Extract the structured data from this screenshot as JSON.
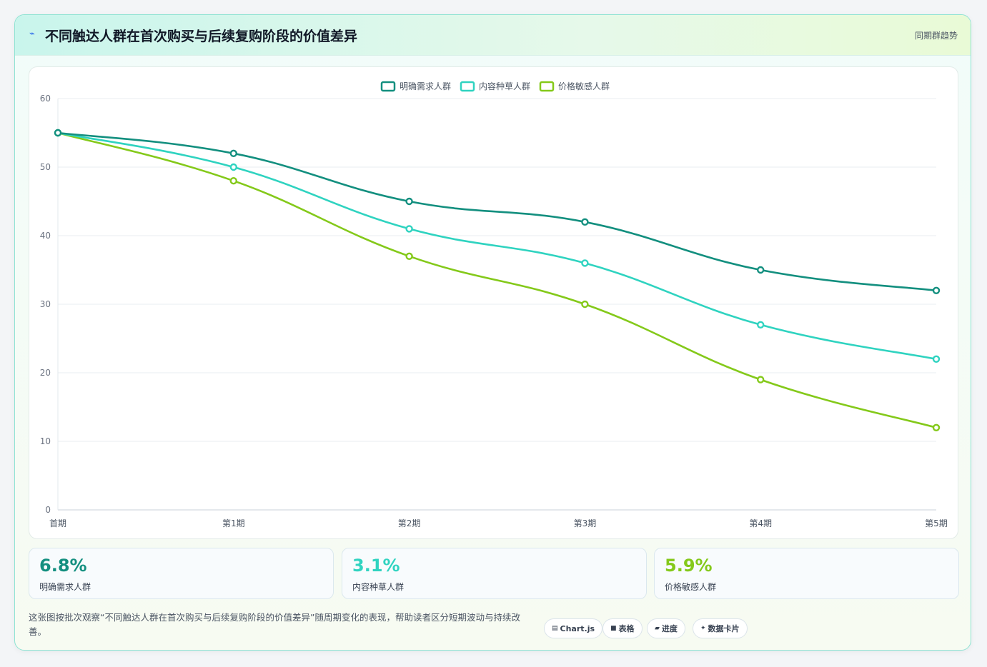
{
  "header": {
    "title": "不同触达人群在首次购买与后续复购阶段的价值差异",
    "tag": "同期群趋势"
  },
  "chart_data": {
    "type": "line",
    "categories": [
      "首期",
      "第1期",
      "第2期",
      "第3期",
      "第4期",
      "第5期"
    ],
    "ylim": [
      0,
      60
    ],
    "yticks": [
      0,
      10,
      20,
      30,
      40,
      50,
      60
    ],
    "grid": true,
    "legend_position": "top-center",
    "series": [
      {
        "name": "明确需求人群",
        "color": "#138f7f",
        "values": [
          55,
          52,
          45,
          42,
          35,
          32
        ]
      },
      {
        "name": "内容种草人群",
        "color": "#2fd3c0",
        "values": [
          55,
          50,
          41,
          36,
          27,
          22
        ]
      },
      {
        "name": "价格敏感人群",
        "color": "#84c91a",
        "values": [
          55,
          48,
          37,
          30,
          19,
          12
        ]
      }
    ]
  },
  "stats": [
    {
      "value": "6.8%",
      "label": "明确需求人群",
      "color": "#138f7f"
    },
    {
      "value": "3.1%",
      "label": "内容种草人群",
      "color": "#2fd3c0"
    },
    {
      "value": "5.9%",
      "label": "价格敏感人群",
      "color": "#84c91a"
    }
  ],
  "footer": {
    "description": "这张图按批次观察“不同触达人群在首次购买与后续复购阶段的价值差异”随周期变化的表现，帮助读者区分短期波动与持续改善。",
    "pills": [
      {
        "icon": "chart-icon",
        "label": "Chart.js"
      },
      {
        "icon": "table-icon",
        "label": "表格"
      },
      {
        "icon": "progress-icon",
        "label": "进度"
      },
      {
        "icon": "sparkle-icon",
        "label": "数据卡片"
      }
    ]
  }
}
